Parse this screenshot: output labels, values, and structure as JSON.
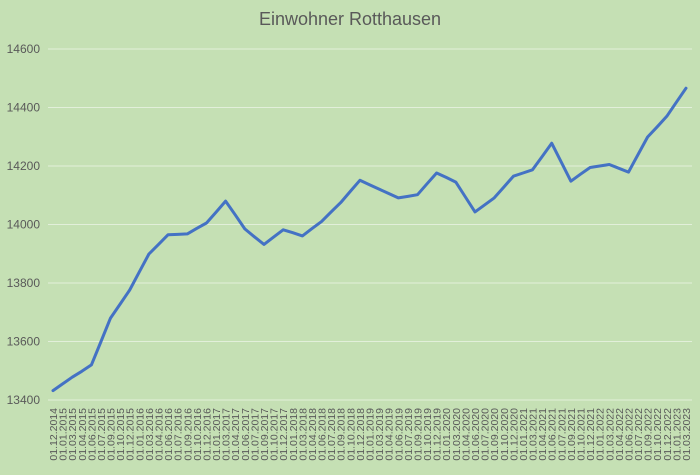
{
  "chart_data": {
    "type": "line",
    "title": "Einwohner Rotthausen",
    "xlabel": "",
    "ylabel": "",
    "ylim": [
      13400,
      14600
    ],
    "yticks": [
      13400,
      13600,
      13800,
      14000,
      14200,
      14400,
      14600
    ],
    "grid": true,
    "legend": "none",
    "line_color": "#4472c4",
    "background": "#c5e0b4",
    "categories": [
      "01.12.2014",
      "01.01.2015",
      "01.03.2015",
      "01.04.2015",
      "01.06.2015",
      "01.07.2015",
      "01.09.2015",
      "01.10.2015",
      "01.12.2015",
      "01.01.2016",
      "01.03.2016",
      "01.04.2016",
      "01.06.2016",
      "01.07.2016",
      "01.09.2016",
      "01.10.2016",
      "01.12.2016",
      "01.01.2017",
      "01.03.2017",
      "01.04.2017",
      "01.06.2017",
      "01.07.2017",
      "01.09.2017",
      "01.10.2017",
      "01.12.2017",
      "01.01.2018",
      "01.03.2018",
      "01.04.2018",
      "01.06.2018",
      "01.07.2018",
      "01.09.2018",
      "01.10.2018",
      "01.12.2018",
      "01.01.2019",
      "01.03.2019",
      "01.04.2019",
      "01.06.2019",
      "01.07.2019",
      "01.09.2019",
      "01.10.2019",
      "01.12.2019",
      "01.01.2020",
      "01.03.2020",
      "01.04.2020",
      "01.06.2020",
      "01.07.2020",
      "01.09.2020",
      "01.10.2020",
      "01.12.2020",
      "01.01.2021",
      "01.03.2021",
      "01.04.2021",
      "01.06.2021",
      "01.07.2021",
      "01.09.2021",
      "01.10.2021",
      "01.12.2021",
      "01.01.2022",
      "01.03.2022",
      "01.04.2022",
      "01.06.2022",
      "01.07.2022",
      "01.09.2022",
      "01.10.2022",
      "01.12.2022",
      "01.01.2023",
      "01.03.2023"
    ],
    "series": [
      {
        "values": [
          13432,
          13455,
          13478,
          13498,
          13520,
          13600,
          13680,
          13728,
          13776,
          13838,
          13899,
          13932,
          13965,
          13966,
          13968,
          13987,
          14005,
          14042,
          14080,
          14033,
          13985,
          13958,
          13932,
          13957,
          13982,
          13972,
          13961,
          13986,
          14010,
          14043,
          14075,
          14113,
          14151,
          14136,
          14121,
          14106,
          14091,
          14096,
          14102,
          14139,
          14176,
          14161,
          14145,
          14094,
          14043,
          14067,
          14091,
          14128,
          14165,
          14176,
          14187,
          14232,
          14278,
          14213,
          14148,
          14172,
          14195,
          14200,
          14205,
          14192,
          14179,
          14239,
          14299,
          14334,
          14370,
          14418,
          14466
        ]
      }
    ]
  }
}
